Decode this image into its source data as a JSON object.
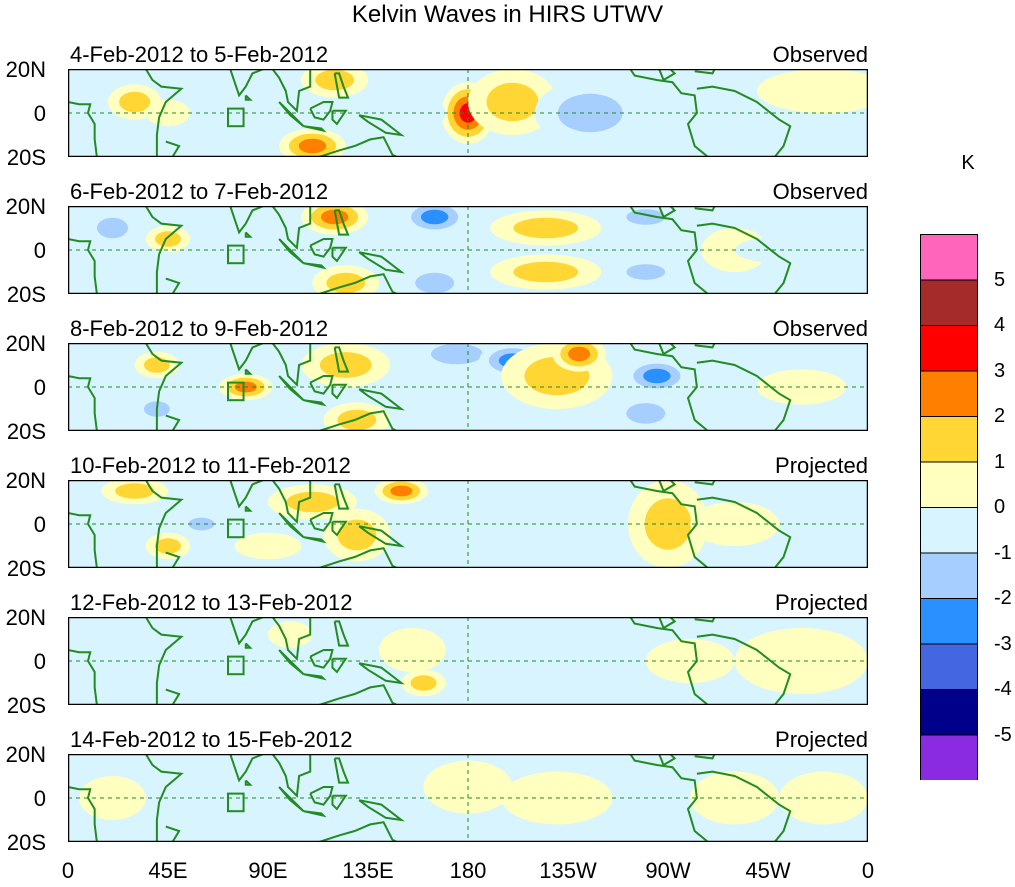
{
  "title": "Kelvin Waves in HIRS UTWV",
  "lat_labels": [
    "20N",
    "0",
    "20S"
  ],
  "lon_labels": [
    "0",
    "45E",
    "90E",
    "135E",
    "180",
    "135W",
    "90W",
    "45W",
    "0"
  ],
  "units": "K",
  "colorbar": {
    "levels": [
      "5",
      "4",
      "3",
      "2",
      "1",
      "0",
      "-1",
      "-2",
      "-3",
      "-4",
      "-5"
    ],
    "colors": [
      "#ff66bb",
      "#a52a2a",
      "#ff0000",
      "#ff7f00",
      "#ffd633",
      "#ffffc0",
      "#d8f4ff",
      "#a6cfff",
      "#2a90ff",
      "#4466e0",
      "#00008b",
      "#8a2be2"
    ]
  },
  "coast_color": "#228b22",
  "panels": [
    {
      "date": "4-Feb-2012 to 5-Feb-2012",
      "status": "Observed"
    },
    {
      "date": "6-Feb-2012 to 7-Feb-2012",
      "status": "Observed"
    },
    {
      "date": "8-Feb-2012 to 9-Feb-2012",
      "status": "Observed"
    },
    {
      "date": "10-Feb-2012 to 11-Feb-2012",
      "status": "Projected"
    },
    {
      "date": "12-Feb-2012 to 13-Feb-2012",
      "status": "Projected"
    },
    {
      "date": "14-Feb-2012 to 15-Feb-2012",
      "status": "Projected"
    }
  ]
}
